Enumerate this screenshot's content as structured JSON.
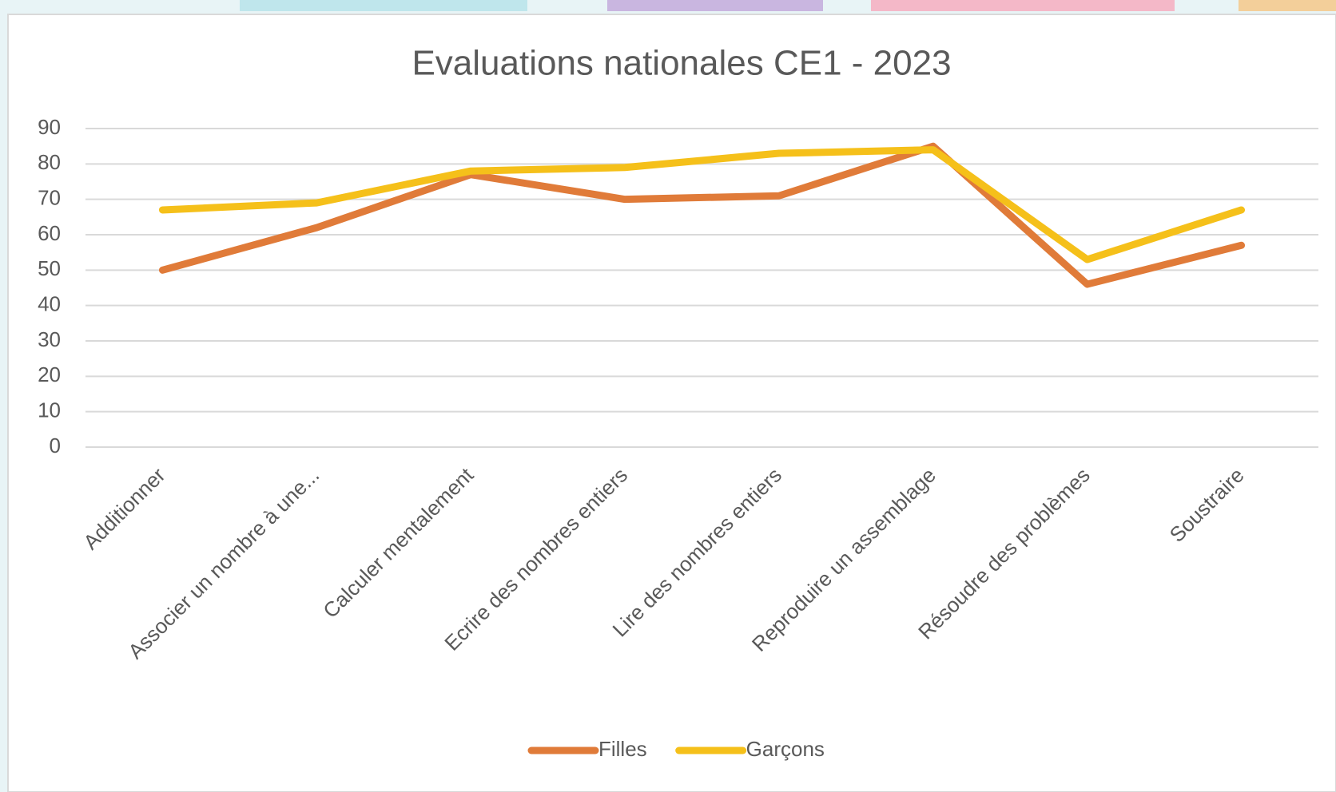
{
  "chart_data": {
    "type": "line",
    "title": "Evaluations nationales CE1 - 2023",
    "categories": [
      "Additionner",
      "Associer un nombre à une...",
      "Calculer mentalement",
      "Ecrire des nombres entiers",
      "Lire des nombres entiers",
      "Reproduire un assemblage",
      "Résoudre des problèmes",
      "Soustraire"
    ],
    "series": [
      {
        "name": "Filles",
        "color": "#e07b39",
        "values": [
          50,
          62,
          77,
          70,
          71,
          85,
          46,
          57
        ]
      },
      {
        "name": "Garçons",
        "color": "#f5c01a",
        "values": [
          67,
          69,
          78,
          79,
          83,
          84,
          53,
          67
        ]
      }
    ],
    "ylim": [
      0,
      90
    ],
    "yticks": [
      0,
      10,
      20,
      30,
      40,
      50,
      60,
      70,
      80,
      90
    ],
    "grid": true,
    "legend": "bottom"
  }
}
